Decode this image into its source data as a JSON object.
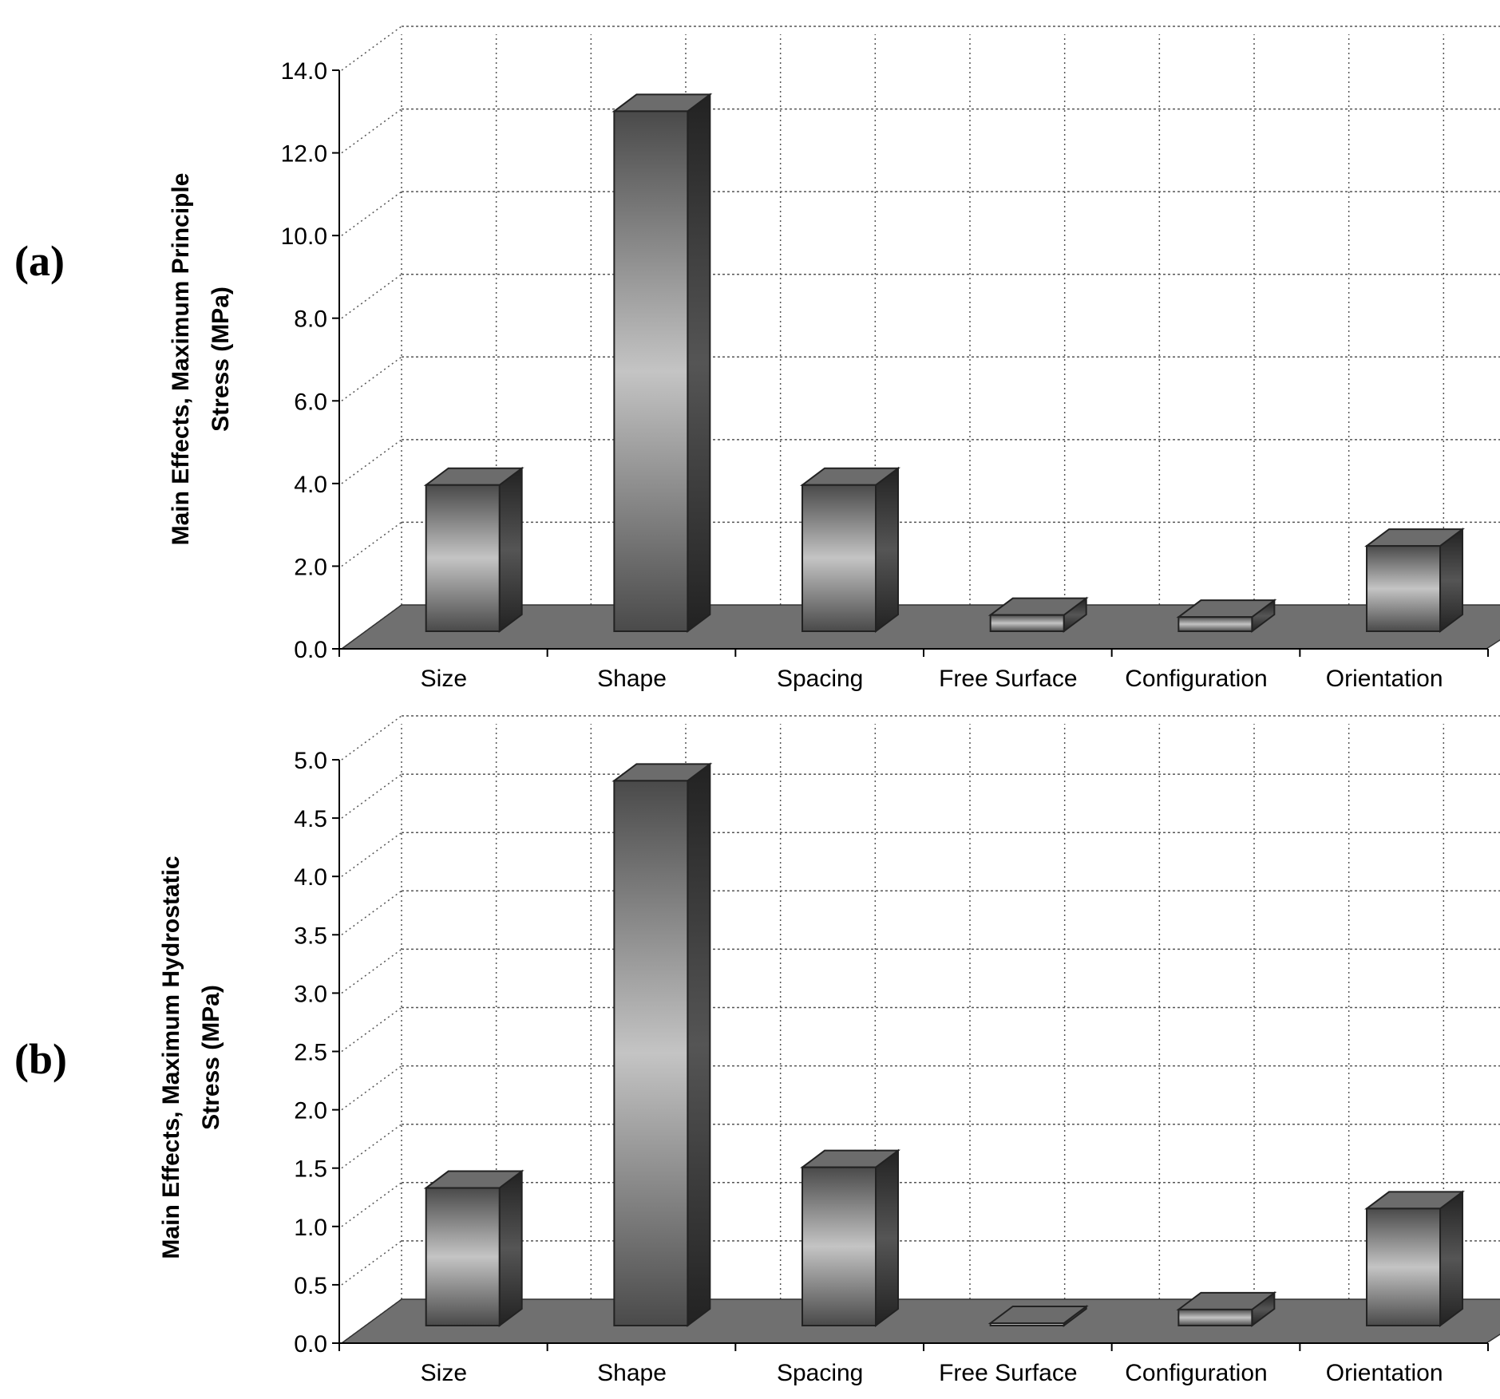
{
  "chart_data": [
    {
      "type": "bar",
      "panel_label": "(a)",
      "title": "",
      "ylabel_lines": [
        "Main Effects, Maximum Principle",
        "Stress (MPa)"
      ],
      "xlabel": "",
      "categories": [
        "Size",
        "Shape",
        "Spacing",
        "Free Surface",
        "Configuration",
        "Orientation"
      ],
      "values": [
        3.6,
        12.8,
        3.6,
        0.4,
        0.35,
        2.1
      ],
      "ylim": [
        0,
        14
      ],
      "yticks": [
        "0.0",
        "2.0",
        "4.0",
        "6.0",
        "8.0",
        "10.0",
        "12.0",
        "14.0"
      ],
      "grid": true,
      "style": "3d-bar"
    },
    {
      "type": "bar",
      "panel_label": "(b)",
      "title": "",
      "ylabel_lines": [
        "Main Effects, Maximum Hydrostatic",
        "Stress (MPa)"
      ],
      "xlabel": "",
      "categories": [
        "Size",
        "Shape",
        "Spacing",
        "Free Surface",
        "Configuration",
        "Orientation"
      ],
      "values": [
        1.2,
        4.75,
        1.38,
        0.02,
        0.14,
        1.02
      ],
      "ylim": [
        0,
        5
      ],
      "yticks": [
        "0.0",
        "0.5",
        "1.0",
        "1.5",
        "2.0",
        "2.5",
        "3.0",
        "3.5",
        "4.0",
        "4.5",
        "5.0"
      ],
      "grid": true,
      "style": "3d-bar"
    }
  ],
  "colors": {
    "floor": "#707070",
    "bar_edge": "#222222",
    "bar_light": "#c4c4c4",
    "bar_dark": "#4a4a4a",
    "bar_side": "#3c3c3c",
    "bar_top": "#6c6c6c",
    "grid": "#555555"
  }
}
